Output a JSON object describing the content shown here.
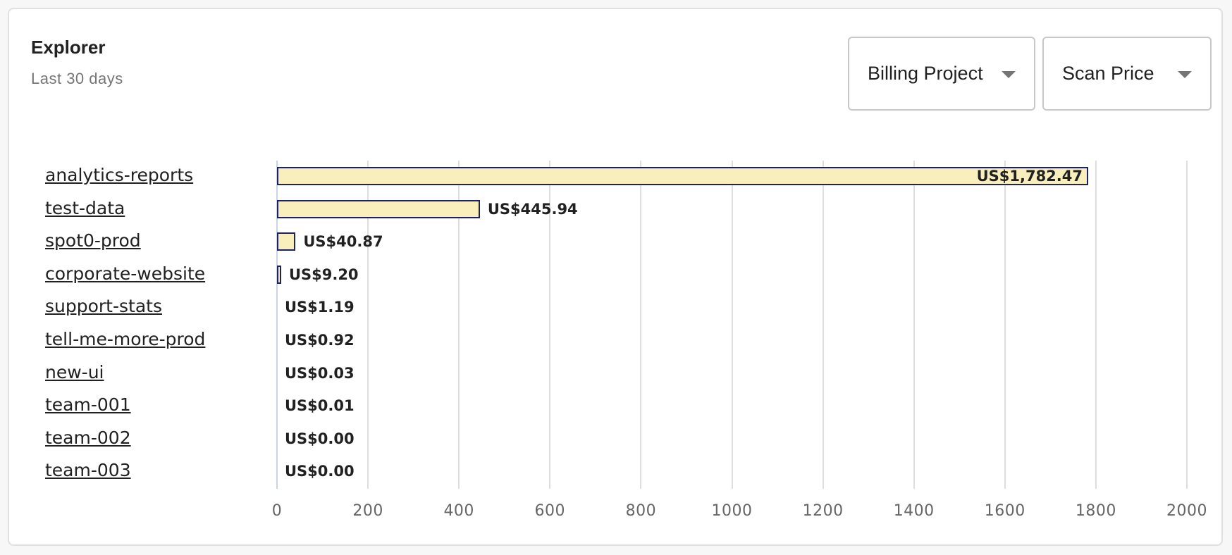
{
  "header": {
    "title": "Explorer",
    "subtitle": "Last 30 days"
  },
  "controls": {
    "group_by": {
      "label": "Billing Project",
      "icon": "caret-down-icon"
    },
    "metric": {
      "label": "Scan Price",
      "icon": "caret-down-icon"
    }
  },
  "colors": {
    "bar_fill": "#f9efbd",
    "bar_border": "#1e2264",
    "grid": "#dedede",
    "axis": "#c9d3ea"
  },
  "chart_data": {
    "type": "bar",
    "orientation": "horizontal",
    "title": "Explorer",
    "subtitle": "Last 30 days",
    "xlabel": "Scan Price",
    "ylabel": "Billing Project",
    "xlim": [
      0,
      2000
    ],
    "x_ticks": [
      "0",
      "200",
      "400",
      "600",
      "800",
      "1000",
      "1200",
      "1400",
      "1600",
      "1800",
      "2000"
    ],
    "grid": true,
    "legend": false,
    "categories": [
      "analytics-reports",
      "test-data",
      "spot0-prod",
      "corporate-website",
      "support-stats",
      "tell-me-more-prod",
      "new-ui",
      "team-001",
      "team-002",
      "team-003"
    ],
    "values": [
      1782.47,
      445.94,
      40.87,
      9.2,
      1.19,
      0.92,
      0.03,
      0.01,
      0.0,
      0.0
    ],
    "value_labels": [
      "US$1,782.47",
      "US$445.94",
      "US$40.87",
      "US$9.20",
      "US$1.19",
      "US$0.92",
      "US$0.03",
      "US$0.01",
      "US$0.00",
      "US$0.00"
    ]
  }
}
